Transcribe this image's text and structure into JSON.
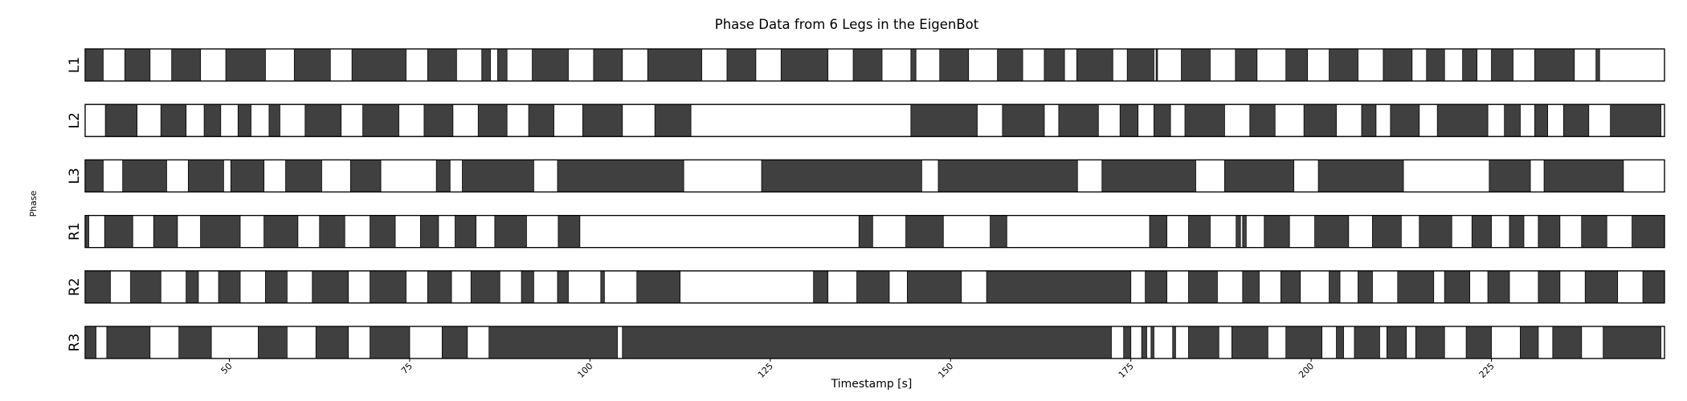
{
  "chart_data": {
    "type": "timeline",
    "title": "Phase Data from 6 Legs in the EigenBot",
    "xlabel": "Timestamp [s]",
    "ylabel": "Phase",
    "xlim": [
      30,
      249
    ],
    "xticks": [
      50,
      75,
      100,
      125,
      150,
      175,
      200,
      225
    ],
    "colors": {
      "stance": "#404040",
      "swing": "#ffffff",
      "edge": "#000000"
    },
    "rows": [
      {
        "label": "L1",
        "bars": [
          [
            30,
            32.5
          ],
          [
            35.5,
            39
          ],
          [
            42,
            46
          ],
          [
            49.5,
            55
          ],
          [
            59,
            64
          ],
          [
            67,
            74.5
          ],
          [
            77.5,
            81.5
          ],
          [
            85,
            86.2
          ],
          [
            87.2,
            88.5
          ],
          [
            92,
            97
          ],
          [
            100.5,
            104.5
          ],
          [
            108,
            115.5
          ],
          [
            119,
            123
          ],
          [
            126.5,
            133
          ],
          [
            136.5,
            140.5
          ],
          [
            144.5,
            145.2
          ],
          [
            148.5,
            152.5
          ],
          [
            156.5,
            160
          ],
          [
            163,
            165.8
          ],
          [
            167.5,
            172.5
          ],
          [
            174.5,
            178.2
          ],
          [
            178.5,
            178.7
          ],
          [
            182,
            186
          ],
          [
            189.5,
            192.5
          ],
          [
            196.5,
            199.5
          ],
          [
            202.5,
            206.5
          ],
          [
            210,
            214
          ],
          [
            216,
            218.5
          ],
          [
            221,
            223
          ],
          [
            225,
            228
          ],
          [
            231,
            236.5
          ],
          [
            239.5,
            240
          ]
        ]
      },
      {
        "label": "L2",
        "bars": [
          [
            32.8,
            37.2
          ],
          [
            40.5,
            44
          ],
          [
            46.5,
            48.8
          ],
          [
            51.2,
            53
          ],
          [
            55.5,
            57
          ],
          [
            60.5,
            65.5
          ],
          [
            68.5,
            73.5
          ],
          [
            77,
            81
          ],
          [
            84.5,
            88.5
          ],
          [
            91.5,
            95
          ],
          [
            99,
            104.5
          ],
          [
            109,
            114
          ],
          [
            144.5,
            153.7
          ],
          [
            157.2,
            163
          ],
          [
            165,
            170.5
          ],
          [
            173.5,
            176
          ],
          [
            178.2,
            180.5
          ],
          [
            182.5,
            188
          ],
          [
            191.5,
            195
          ],
          [
            199,
            203.5
          ],
          [
            207,
            209
          ],
          [
            211,
            215
          ],
          [
            217.5,
            224.5
          ],
          [
            226.8,
            229
          ],
          [
            231,
            232.8
          ],
          [
            235,
            238.5
          ],
          [
            241.5,
            248.5
          ]
        ]
      },
      {
        "label": "L3",
        "bars": [
          [
            30,
            32.5
          ],
          [
            35.2,
            41.3
          ],
          [
            44.3,
            49.2
          ],
          [
            50.2,
            54.8
          ],
          [
            57.8,
            62.8
          ],
          [
            66.8,
            71
          ],
          [
            78.7,
            80.6
          ],
          [
            82.3,
            92.2
          ],
          [
            95.5,
            113
          ],
          [
            123.8,
            146
          ],
          [
            148.3,
            167.6
          ],
          [
            171,
            184
          ],
          [
            188,
            197.6
          ],
          [
            201,
            212.8
          ],
          [
            224.7,
            230.4
          ],
          [
            232.3,
            243.3
          ],
          [
            249.5,
            249.8
          ]
        ]
      },
      {
        "label": "R1",
        "bars": [
          [
            30,
            30.5
          ],
          [
            32.7,
            36.6
          ],
          [
            39.5,
            42.8
          ],
          [
            46,
            51.5
          ],
          [
            54.8,
            59.5
          ],
          [
            62.5,
            66
          ],
          [
            69.5,
            73
          ],
          [
            76.5,
            79
          ],
          [
            81.3,
            84.2
          ],
          [
            86.8,
            91.2
          ],
          [
            95.6,
            98.6
          ],
          [
            137.3,
            139.2
          ],
          [
            143.8,
            149
          ],
          [
            155.5,
            157.8
          ],
          [
            177.6,
            180
          ],
          [
            183,
            186
          ],
          [
            189.6,
            190.2
          ],
          [
            190.5,
            191
          ],
          [
            193.5,
            197
          ],
          [
            200.5,
            205.2
          ],
          [
            208.5,
            212.5
          ],
          [
            215,
            219.5
          ],
          [
            222.3,
            225
          ],
          [
            227.5,
            229.5
          ],
          [
            231.5,
            234.5
          ],
          [
            237.5,
            241
          ],
          [
            244.5,
            249.2
          ],
          [
            252.5,
            252.7
          ]
        ]
      },
      {
        "label": "R2",
        "bars": [
          [
            30,
            33.5
          ],
          [
            36.3,
            40.5
          ],
          [
            44,
            45.7
          ],
          [
            48.5,
            51.5
          ],
          [
            55,
            58
          ],
          [
            61.5,
            66.5
          ],
          [
            69.5,
            74.5
          ],
          [
            77.5,
            80.8
          ],
          [
            83.5,
            87.5
          ],
          [
            90.5,
            92.2
          ],
          [
            95.5,
            97
          ],
          [
            101.5,
            102
          ],
          [
            106.5,
            112.5
          ],
          [
            131,
            133
          ],
          [
            137,
            141.5
          ],
          [
            144,
            151.5
          ],
          [
            155,
            175
          ],
          [
            177,
            180
          ],
          [
            183,
            187
          ],
          [
            190.5,
            192.8
          ],
          [
            195.8,
            198.5
          ],
          [
            202.5,
            204
          ],
          [
            206.5,
            208.5
          ],
          [
            212,
            217
          ],
          [
            218.5,
            222
          ],
          [
            224.5,
            227.5
          ],
          [
            231.5,
            234.5
          ],
          [
            238,
            242.5
          ],
          [
            246,
            249
          ]
        ]
      },
      {
        "label": "R3",
        "bars": [
          [
            30,
            31.5
          ],
          [
            33,
            39
          ],
          [
            43,
            47.5
          ],
          [
            54,
            58
          ],
          [
            62,
            66.5
          ],
          [
            69.5,
            75
          ],
          [
            79.5,
            83
          ],
          [
            86,
            103.8
          ],
          [
            104.5,
            172.3
          ],
          [
            174,
            175
          ],
          [
            176.5,
            177.2
          ],
          [
            177.8,
            178.2
          ],
          [
            180.8,
            181.2
          ],
          [
            183,
            187.2
          ],
          [
            189,
            194
          ],
          [
            196.5,
            201.5
          ],
          [
            203.5,
            204.5
          ],
          [
            206,
            209.5
          ],
          [
            210.5,
            213.2
          ],
          [
            214.5,
            218.5
          ],
          [
            221.5,
            225
          ],
          [
            229,
            231.5
          ],
          [
            233.5,
            237.5
          ],
          [
            240.5,
            248.5
          ]
        ]
      }
    ]
  }
}
